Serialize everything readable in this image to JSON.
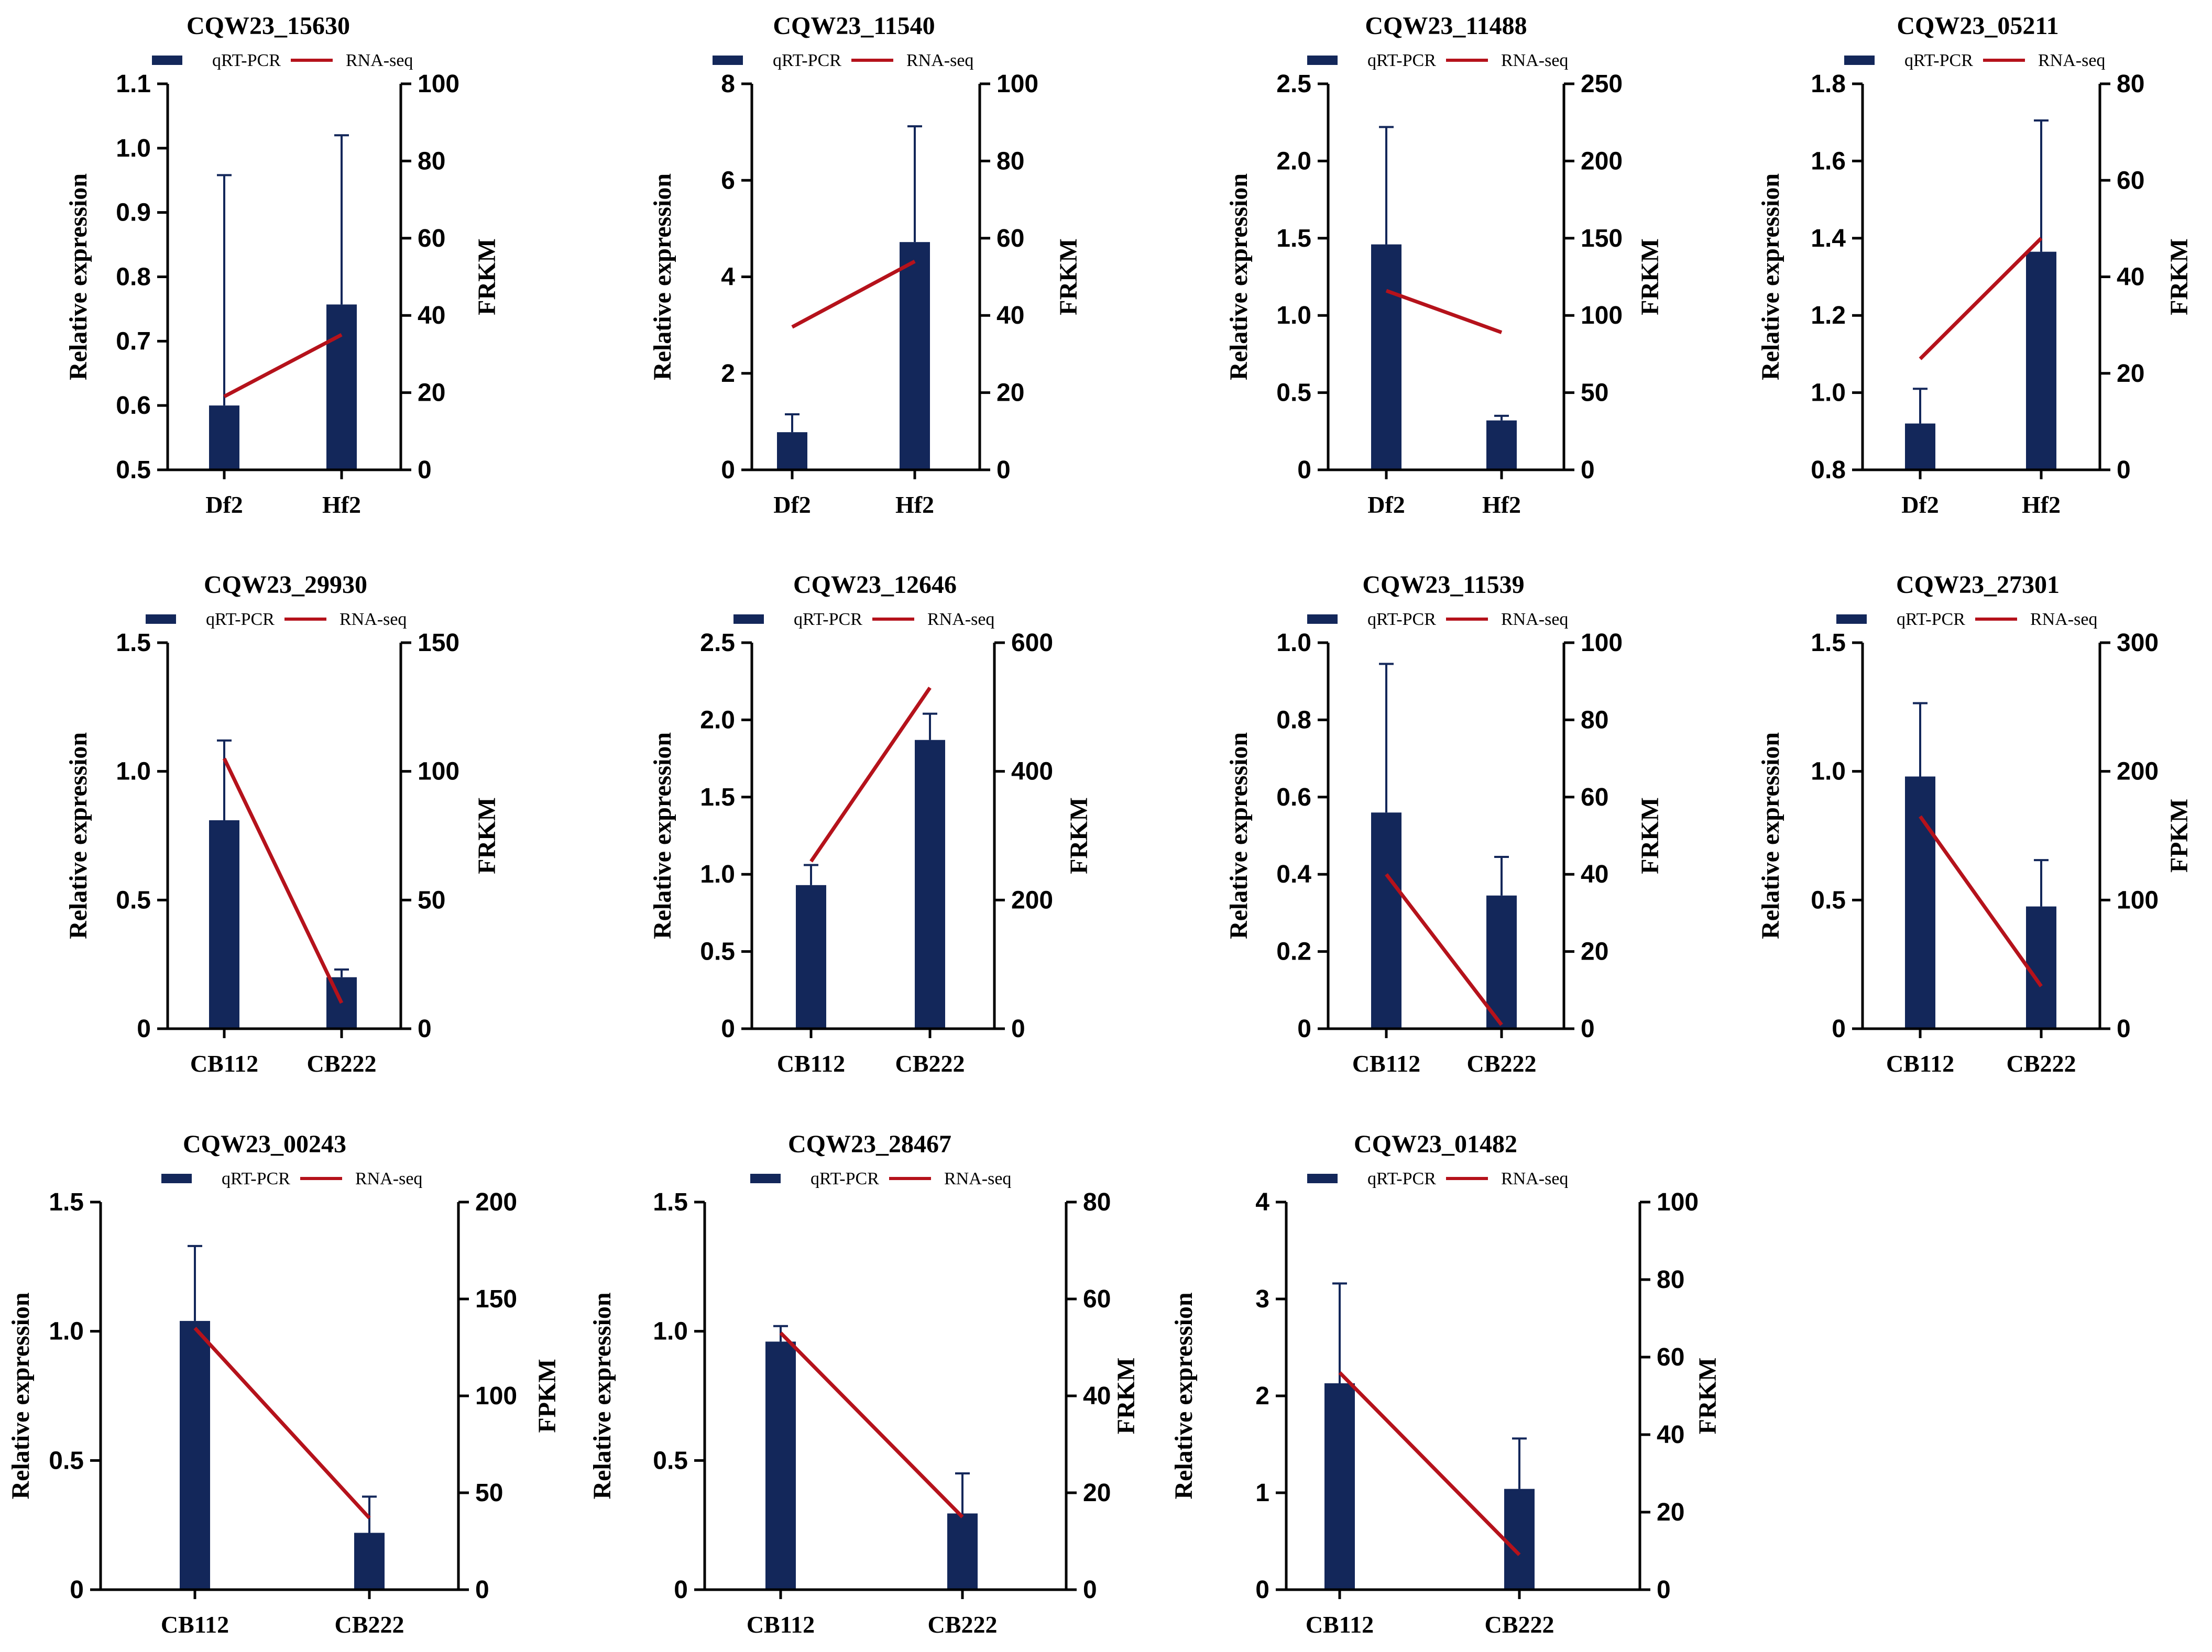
{
  "colors": {
    "bar": "#13275a",
    "line": "#b5121b",
    "axis": "#000000"
  },
  "chart_data": [
    {
      "type": "bar+line",
      "title": "CQW23_15630",
      "legend": [
        "qRT-PCR",
        "RNA-seq"
      ],
      "categories": [
        "Df2",
        "Hf2"
      ],
      "bar_values": [
        0.6,
        0.757
      ],
      "bar_errors": [
        0.358,
        0.263
      ],
      "line_values": [
        19,
        35
      ],
      "ylabel_left": "Relative expression",
      "ylabel_right": "FRKM",
      "ylim_left": [
        0.5,
        1.1
      ],
      "yticks_left": [
        "0.5",
        "0.6",
        "0.7",
        "0.8",
        "0.9",
        "1.0",
        "1.1"
      ],
      "ylim_right": [
        0,
        100
      ],
      "yticks_right": [
        "0",
        "20",
        "40",
        "60",
        "80",
        "100"
      ]
    },
    {
      "type": "bar+line",
      "title": "CQW23_11540",
      "legend": [
        "qRT-PCR",
        "RNA-seq"
      ],
      "categories": [
        "Df2",
        "Hf2"
      ],
      "bar_values": [
        0.78,
        4.72
      ],
      "bar_errors": [
        0.37,
        2.4
      ],
      "line_values": [
        37,
        54
      ],
      "ylabel_left": "Relative expression",
      "ylabel_right": "FRKM",
      "ylim_left": [
        0,
        8
      ],
      "yticks_left": [
        "0",
        "2",
        "4",
        "6",
        "8"
      ],
      "ylim_right": [
        0,
        100
      ],
      "yticks_right": [
        "0",
        "20",
        "40",
        "60",
        "80",
        "100"
      ]
    },
    {
      "type": "bar+line",
      "title": "CQW23_11488",
      "legend": [
        "qRT-PCR",
        "RNA-seq"
      ],
      "categories": [
        "Df2",
        "Hf2"
      ],
      "bar_values": [
        1.46,
        0.32
      ],
      "bar_errors": [
        0.76,
        0.03
      ],
      "line_values": [
        116,
        89
      ],
      "ylabel_left": "Relative expression",
      "ylabel_right": "FRKM",
      "ylim_left": [
        0,
        2.5
      ],
      "yticks_left": [
        "0",
        "0.5",
        "1.0",
        "1.5",
        "2.0",
        "2.5"
      ],
      "ylim_right": [
        0,
        250
      ],
      "yticks_right": [
        "0",
        "50",
        "100",
        "150",
        "200",
        "250"
      ]
    },
    {
      "type": "bar+line",
      "title": "CQW23_05211",
      "legend": [
        "qRT-PCR",
        "RNA-seq"
      ],
      "categories": [
        "Df2",
        "Hf2"
      ],
      "bar_values": [
        0.92,
        1.365
      ],
      "bar_errors": [
        0.09,
        0.34
      ],
      "line_values": [
        23,
        48
      ],
      "ylabel_left": "Relative expression",
      "ylabel_right": "FRKM",
      "ylim_left": [
        0.8,
        1.8
      ],
      "yticks_left": [
        "0.8",
        "1.0",
        "1.2",
        "1.4",
        "1.6",
        "1.8"
      ],
      "ylim_right": [
        0,
        80
      ],
      "yticks_right": [
        "0",
        "20",
        "40",
        "60",
        "80"
      ]
    },
    {
      "type": "bar+line",
      "title": "CQW23_29930",
      "legend": [
        "qRT-PCR",
        "RNA-seq"
      ],
      "categories": [
        "CB112",
        "CB222"
      ],
      "bar_values": [
        0.81,
        0.2
      ],
      "bar_errors": [
        0.31,
        0.03
      ],
      "line_values": [
        105,
        10
      ],
      "ylabel_left": "Relative expression",
      "ylabel_right": "FRKM",
      "ylim_left": [
        0,
        1.5
      ],
      "yticks_left": [
        "0",
        "0.5",
        "1.0",
        "1.5"
      ],
      "ylim_right": [
        0,
        150
      ],
      "yticks_right": [
        "0",
        "50",
        "100",
        "150"
      ]
    },
    {
      "type": "bar+line",
      "title": "CQW23_12646",
      "legend": [
        "qRT-PCR",
        "RNA-seq"
      ],
      "categories": [
        "CB112",
        "CB222"
      ],
      "bar_values": [
        0.93,
        1.87
      ],
      "bar_errors": [
        0.13,
        0.17
      ],
      "line_values": [
        260,
        530
      ],
      "ylabel_left": "Relative expression",
      "ylabel_right": "FRKM",
      "ylim_left": [
        0,
        2.5
      ],
      "yticks_left": [
        "0",
        "0.5",
        "1.0",
        "1.5",
        "2.0",
        "2.5"
      ],
      "ylim_right": [
        0,
        600
      ],
      "yticks_right": [
        "0",
        "200",
        "400",
        "600"
      ]
    },
    {
      "type": "bar+line",
      "title": "CQW23_11539",
      "legend": [
        "qRT-PCR",
        "RNA-seq"
      ],
      "categories": [
        "CB112",
        "CB222"
      ],
      "bar_values": [
        0.56,
        0.345
      ],
      "bar_errors": [
        0.385,
        0.1
      ],
      "line_values": [
        40,
        1
      ],
      "ylabel_left": "Relative expression",
      "ylabel_right": "FRKM",
      "ylim_left": [
        0,
        1.0
      ],
      "yticks_left": [
        "0",
        "0.2",
        "0.4",
        "0.6",
        "0.8",
        "1.0"
      ],
      "ylim_right": [
        0,
        100
      ],
      "yticks_right": [
        "0",
        "20",
        "40",
        "60",
        "80",
        "100"
      ]
    },
    {
      "type": "bar+line",
      "title": "CQW23_27301",
      "legend": [
        "qRT-PCR",
        "RNA-seq"
      ],
      "categories": [
        "CB112",
        "CB222"
      ],
      "bar_values": [
        0.98,
        0.475
      ],
      "bar_errors": [
        0.285,
        0.18
      ],
      "line_values": [
        165,
        33
      ],
      "ylabel_left": "Relative expression",
      "ylabel_right": "FPKM",
      "ylim_left": [
        0,
        1.5
      ],
      "yticks_left": [
        "0",
        "0.5",
        "1.0",
        "1.5"
      ],
      "ylim_right": [
        0,
        300
      ],
      "yticks_right": [
        "0",
        "100",
        "200",
        "300"
      ]
    },
    {
      "type": "bar+line",
      "title": "CQW23_00243",
      "legend": [
        "qRT-PCR",
        "RNA-seq"
      ],
      "categories": [
        "CB112",
        "CB222"
      ],
      "bar_values": [
        1.04,
        0.22
      ],
      "bar_errors": [
        0.29,
        0.14
      ],
      "line_values": [
        135,
        37
      ],
      "ylabel_left": "Relative expression",
      "ylabel_right": "FPKM",
      "ylim_left": [
        0,
        1.5
      ],
      "yticks_left": [
        "0",
        "0.5",
        "1.0",
        "1.5"
      ],
      "ylim_right": [
        0,
        200
      ],
      "yticks_right": [
        "0",
        "50",
        "100",
        "150",
        "200"
      ]
    },
    {
      "type": "bar+line",
      "title": "CQW23_28467",
      "legend": [
        "qRT-PCR",
        "RNA-seq"
      ],
      "categories": [
        "CB112",
        "CB222"
      ],
      "bar_values": [
        0.96,
        0.295
      ],
      "bar_errors": [
        0.06,
        0.155
      ],
      "line_values": [
        53,
        15
      ],
      "ylabel_left": "Relative expression",
      "ylabel_right": "FRKM",
      "ylim_left": [
        0,
        1.5
      ],
      "yticks_left": [
        "0",
        "0.5",
        "1.0",
        "1.5"
      ],
      "ylim_right": [
        0,
        80
      ],
      "yticks_right": [
        "0",
        "20",
        "40",
        "60",
        "80"
      ]
    },
    {
      "type": "bar+line",
      "title": "CQW23_01482",
      "legend": [
        "qRT-PCR",
        "RNA-seq"
      ],
      "categories": [
        "CB112",
        "CB222"
      ],
      "bar_values": [
        2.13,
        1.04
      ],
      "bar_errors": [
        1.03,
        0.52
      ],
      "line_values": [
        56,
        9
      ],
      "ylabel_left": "Relative expression",
      "ylabel_right": "FRKM",
      "ylim_left": [
        0,
        4
      ],
      "yticks_left": [
        "0",
        "1",
        "2",
        "3",
        "4"
      ],
      "ylim_right": [
        0,
        100
      ],
      "yticks_right": [
        "0",
        "20",
        "40",
        "60",
        "80",
        "100"
      ]
    }
  ]
}
